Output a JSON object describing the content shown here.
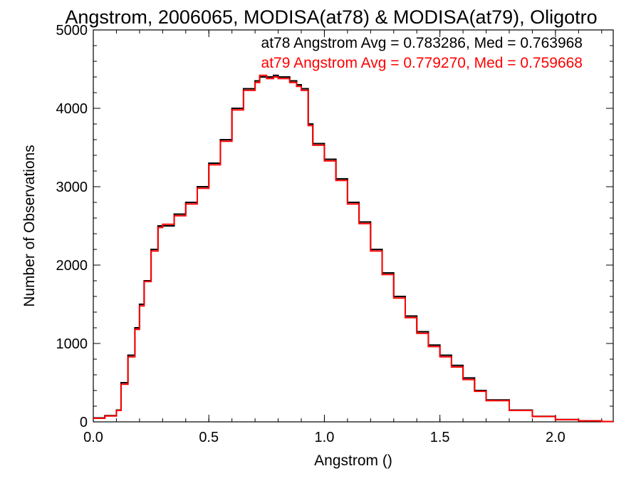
{
  "chart_data": {
    "type": "line",
    "title": "Angstrom, 2006065, MODISA(at78) & MODISA(at79), Oligotro",
    "xlabel": "Angstrom ()",
    "ylabel": "Number of Observations",
    "xlim": [
      0.0,
      2.25
    ],
    "ylim": [
      0,
      5000
    ],
    "xticks": [
      "0.0",
      "0.5",
      "1.0",
      "1.5",
      "2.0"
    ],
    "yticks": [
      "0",
      "1000",
      "2000",
      "3000",
      "4000",
      "5000"
    ],
    "grid": false,
    "step": true,
    "annotations": [
      {
        "text": "at78 Angstrom Avg = 0.783286, Med = 0.763968",
        "color": "#000000"
      },
      {
        "text": "at79 Angstrom Avg = 0.779270, Med = 0.759668",
        "color": "#ff0000"
      }
    ],
    "x": [
      0.0,
      0.05,
      0.1,
      0.12,
      0.15,
      0.18,
      0.2,
      0.22,
      0.25,
      0.28,
      0.3,
      0.35,
      0.4,
      0.45,
      0.5,
      0.55,
      0.6,
      0.65,
      0.7,
      0.72,
      0.75,
      0.78,
      0.8,
      0.85,
      0.88,
      0.9,
      0.93,
      0.95,
      1.0,
      1.05,
      1.1,
      1.15,
      1.2,
      1.25,
      1.3,
      1.35,
      1.4,
      1.45,
      1.5,
      1.55,
      1.6,
      1.65,
      1.7,
      1.8,
      1.9,
      2.0,
      2.1,
      2.2,
      2.25
    ],
    "series": [
      {
        "color": "#000000",
        "values": [
          50,
          80,
          150,
          500,
          850,
          1200,
          1500,
          1800,
          2200,
          2500,
          2500,
          2650,
          2800,
          3000,
          3300,
          3600,
          4000,
          4250,
          4350,
          4400,
          4400,
          4420,
          4400,
          4350,
          4300,
          4250,
          3800,
          3550,
          3350,
          3100,
          2800,
          2550,
          2200,
          1900,
          1600,
          1350,
          1150,
          980,
          850,
          720,
          560,
          400,
          280,
          150,
          70,
          30,
          12,
          5,
          0
        ]
      },
      {
        "color": "#ff0000",
        "values": [
          45,
          75,
          145,
          480,
          830,
          1180,
          1480,
          1790,
          2180,
          2480,
          2520,
          2630,
          2780,
          2980,
          3280,
          3580,
          3980,
          4230,
          4330,
          4420,
          4380,
          4400,
          4380,
          4330,
          4280,
          4230,
          3780,
          3530,
          3330,
          3080,
          2780,
          2530,
          2180,
          1880,
          1580,
          1330,
          1130,
          960,
          830,
          700,
          540,
          390,
          270,
          145,
          68,
          28,
          12,
          5,
          0
        ]
      }
    ]
  }
}
